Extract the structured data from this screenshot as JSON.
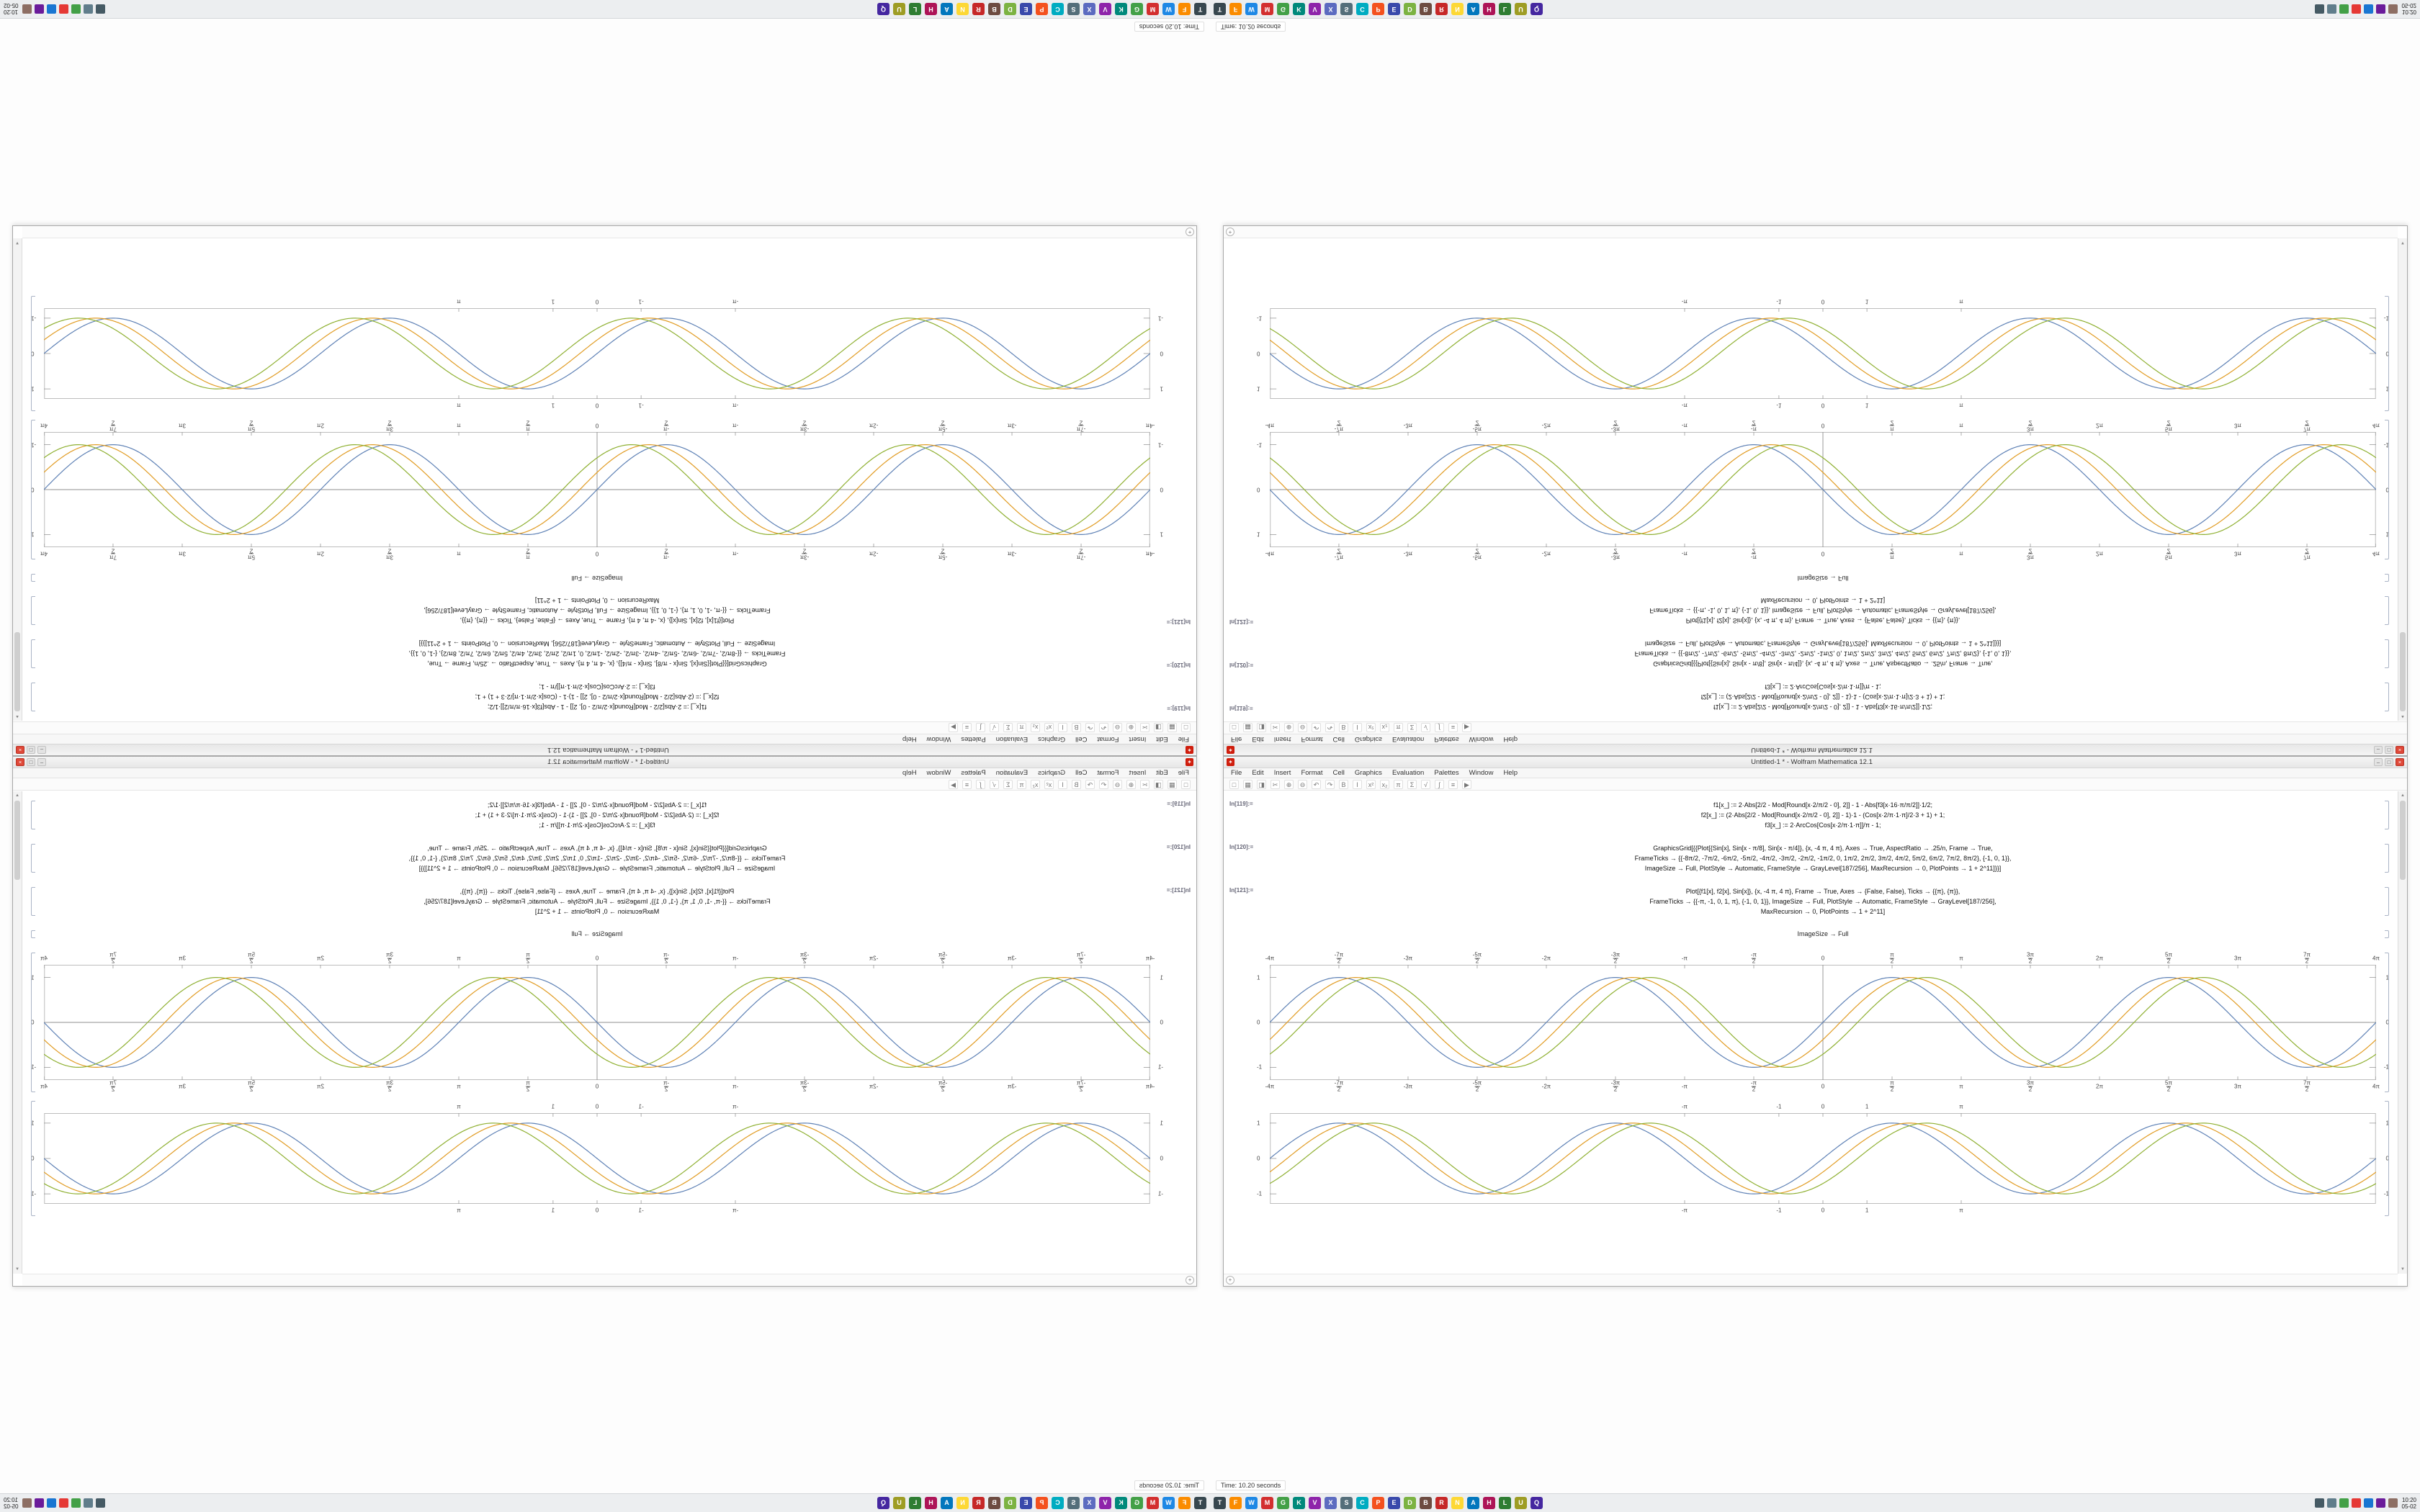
{
  "window": {
    "title": "Untitled-1 * - Wolfram Mathematica 12.1",
    "menus": [
      "File",
      "Edit",
      "Insert",
      "Format",
      "Cell",
      "Graphics",
      "Evaluation",
      "Palettes",
      "Window",
      "Help"
    ],
    "toolbar_icons": [
      {
        "name": "new-notebook-icon",
        "glyph": "□"
      },
      {
        "name": "open-icon",
        "glyph": "▦"
      },
      {
        "name": "save-icon",
        "glyph": "◨"
      },
      {
        "name": "cut-icon",
        "glyph": "✂"
      },
      {
        "name": "insert-cell-icon",
        "glyph": "⊕"
      },
      {
        "name": "delete-cell-icon",
        "glyph": "⊖"
      },
      {
        "name": "undo-icon",
        "glyph": "↶"
      },
      {
        "name": "redo-icon",
        "glyph": "↷"
      },
      {
        "name": "bold-icon",
        "glyph": "B"
      },
      {
        "name": "italic-icon",
        "glyph": "I"
      },
      {
        "name": "superscript-icon",
        "glyph": "x²"
      },
      {
        "name": "subscript-icon",
        "glyph": "x₂"
      },
      {
        "name": "pi-symbol-icon",
        "glyph": "π"
      },
      {
        "name": "sum-symbol-icon",
        "glyph": "Σ"
      },
      {
        "name": "sqrt-symbol-icon",
        "glyph": "√"
      },
      {
        "name": "integral-symbol-icon",
        "glyph": "∫"
      },
      {
        "name": "cell-style-icon",
        "glyph": "≡"
      },
      {
        "name": "evaluate-icon",
        "glyph": "▶"
      }
    ],
    "buttons": [
      {
        "name": "minimize-button",
        "glyph": "–"
      },
      {
        "name": "maximize-button",
        "glyph": "□"
      },
      {
        "name": "close-button",
        "glyph": "×"
      }
    ],
    "spikey_glyph": "✶",
    "scroll_up": "▲",
    "scroll_down": "▼",
    "assistant_glyph": "+"
  },
  "cells": [
    {
      "label": "In[119]:=",
      "lines": [
        "f1[x_] := 2·Abs[2/2 - Mod[Round[x·2/π/2 - 0], 2]] - 1 - Abs[f3[x·16·π/π/2]]·1/2;",
        "f2[x_] := (2·Abs[2/2 - Mod[Round[x·2/π/2 - 0], 2]] - 1)·1 - (Cos[x·2/π·1·π]/2·3 + 1) + 1;",
        "f3[x_] := 2·ArcCos[Cos[x·2/π·1·π]]/π - 1;"
      ]
    },
    {
      "label": "In[120]:=",
      "lines": [
        "GraphicsGrid[{{Plot[{Sin[x], Sin[x - π/8], Sin[x - π/4]}, {x, -4 π, 4 π}, Axes → True, AspectRatio → .25/n, Frame → True,",
        "FrameTicks → {{-8π/2, -7π/2, -6π/2, -5π/2, -4π/2, -3π/2, -2π/2, -1π/2, 0, 1π/2, 2π/2, 3π/2, 4π/2, 5π/2, 6π/2, 7π/2, 8π/2}, {-1, 0, 1}},",
        "ImageSize → Full, PlotStyle → Automatic, FrameStyle → GrayLevel[187/256], MaxRecursion → 0, PlotPoints → 1 + 2^11]}}]"
      ]
    },
    {
      "label": "In[121]:=",
      "lines": [
        "Plot[{f1[x], f2[x], Sin[x]}, {x, -4 π, 4 π}, Frame → True, Axes → {False, False}, Ticks → {{π}, {π}},",
        "FrameTicks → {{-π, -1, 0, 1, π}, {-1, 0, 1}}, ImageSize → Full, PlotStyle → Automatic, FrameStyle → GrayLevel[187/256],",
        "MaxRecursion → 0, PlotPoints → 1 + 2^11]"
      ]
    }
  ],
  "out_label": "ImageSize → Full",
  "chart_data": [
    {
      "type": "line",
      "name": "sine-comparison-axes-plot",
      "title": "",
      "xlabel": "",
      "ylabel": "",
      "xmin": -12.566,
      "xmax": 12.566,
      "height": 160,
      "amp": 0.78,
      "frame": true,
      "axes": true,
      "frame_color": "#bdbdbd",
      "series": [
        {
          "name": "sin-x",
          "label": "Sin[x]",
          "color": "#5e81b5",
          "phase": 0
        },
        {
          "name": "sin-x-pi8",
          "label": "Sin[x - π/8]",
          "color": "#e19c24",
          "phase": 0.3927
        },
        {
          "name": "sin-x-pi4",
          "label": "Sin[x - π/4]",
          "color": "#8fb032",
          "phase": 0.7854
        }
      ],
      "x_ticks": [
        {
          "v": -12.566,
          "l": "-4π"
        },
        {
          "v": -10.996,
          "num": "-7π",
          "den": "2"
        },
        {
          "v": -9.4248,
          "l": "-3π"
        },
        {
          "v": -7.854,
          "num": "-5π",
          "den": "2"
        },
        {
          "v": -6.2832,
          "l": "-2π"
        },
        {
          "v": -4.7124,
          "num": "-3π",
          "den": "2"
        },
        {
          "v": -3.1416,
          "l": "-π"
        },
        {
          "v": -1.5708,
          "num": "-π",
          "den": "2"
        },
        {
          "v": 0,
          "l": "0"
        },
        {
          "v": 1.5708,
          "num": "π",
          "den": "2"
        },
        {
          "v": 3.1416,
          "l": "π"
        },
        {
          "v": 4.7124,
          "num": "3π",
          "den": "2"
        },
        {
          "v": 6.2832,
          "l": "2π"
        },
        {
          "v": 7.854,
          "num": "5π",
          "den": "2"
        },
        {
          "v": 9.4248,
          "l": "3π"
        },
        {
          "v": 10.996,
          "num": "7π",
          "den": "2"
        },
        {
          "v": 12.566,
          "l": "4π"
        }
      ],
      "y_ticks": [
        {
          "v": 1,
          "l": "1"
        },
        {
          "v": 0,
          "l": "0"
        },
        {
          "v": -1,
          "l": "-1"
        }
      ]
    },
    {
      "type": "line",
      "name": "sine-comparison-framed-plot",
      "title": "",
      "xlabel": "",
      "ylabel": "",
      "xmin": -12.566,
      "xmax": 12.566,
      "height": 126,
      "amp": 0.78,
      "frame": true,
      "axes": false,
      "frame_color": "#bdbdbd",
      "series": [
        {
          "name": "sin-x",
          "label": "Sin[x]",
          "color": "#5e81b5",
          "phase": 0
        },
        {
          "name": "sin-x-pi8",
          "label": "Sin[x - π/8]",
          "color": "#e19c24",
          "phase": 0.3927
        },
        {
          "name": "sin-x-pi4",
          "label": "Sin[x - π/4]",
          "color": "#8fb032",
          "phase": 0.7854
        }
      ],
      "x_ticks": [
        {
          "v": -3.1416,
          "l": "-π"
        },
        {
          "v": -1,
          "l": "-1"
        },
        {
          "v": 0,
          "l": "0"
        },
        {
          "v": 1,
          "l": "1"
        },
        {
          "v": 3.1416,
          "l": "π"
        }
      ],
      "y_ticks": [
        {
          "v": 1,
          "l": "1"
        },
        {
          "v": 0,
          "l": "0"
        },
        {
          "v": -1,
          "l": "-1"
        }
      ]
    }
  ],
  "statusbar": {
    "text": "Time: 10.20 seconds"
  },
  "taskbar": {
    "clock": "10:20",
    "date": "05-02",
    "center_icons": [
      {
        "name": "app-terminal",
        "color": "#37474f",
        "glyph": "T"
      },
      {
        "name": "app-files",
        "color": "#fb8c00",
        "glyph": "F"
      },
      {
        "name": "app-browser",
        "color": "#1e88e5",
        "glyph": "W"
      },
      {
        "name": "app-mathematica",
        "color": "#d32f2f",
        "glyph": "M"
      },
      {
        "name": "app-graphics",
        "color": "#43a047",
        "glyph": "G"
      },
      {
        "name": "app-calc",
        "color": "#00897b",
        "glyph": "K"
      },
      {
        "name": "app-video",
        "color": "#8e24aa",
        "glyph": "V"
      },
      {
        "name": "app-text",
        "color": "#5c6bc0",
        "glyph": "X"
      },
      {
        "name": "app-settings",
        "color": "#546e7a",
        "glyph": "S"
      },
      {
        "name": "app-code",
        "color": "#00acc1",
        "glyph": "C"
      },
      {
        "name": "app-paint",
        "color": "#f4511e",
        "glyph": "P"
      },
      {
        "name": "app-mail",
        "color": "#3949ab",
        "glyph": "E"
      },
      {
        "name": "app-docs",
        "color": "#7cb342",
        "glyph": "D"
      },
      {
        "name": "app-build",
        "color": "#6d4c41",
        "glyph": "B"
      },
      {
        "name": "app-reader",
        "color": "#c62828",
        "glyph": "R"
      },
      {
        "name": "app-notes",
        "color": "#fdd835",
        "glyph": "N"
      },
      {
        "name": "app-audio",
        "color": "#0277bd",
        "glyph": "A"
      },
      {
        "name": "app-photos",
        "color": "#ad1457",
        "glyph": "H"
      },
      {
        "name": "app-library",
        "color": "#2e7d32",
        "glyph": "L"
      },
      {
        "name": "app-utilities",
        "color": "#9e9d24",
        "glyph": "U"
      },
      {
        "name": "app-queue",
        "color": "#4527a0",
        "glyph": "Q"
      }
    ],
    "tray_icons": [
      {
        "name": "tray-network-icon",
        "color": "#455a64"
      },
      {
        "name": "tray-volume-icon",
        "color": "#607d8b"
      },
      {
        "name": "tray-battery-icon",
        "color": "#43a047"
      },
      {
        "name": "tray-update-icon",
        "color": "#e53935"
      },
      {
        "name": "tray-bluetooth-icon",
        "color": "#1976d2"
      },
      {
        "name": "tray-shield-icon",
        "color": "#6a1b9a"
      },
      {
        "name": "tray-clip-icon",
        "color": "#8d6e63"
      }
    ]
  }
}
